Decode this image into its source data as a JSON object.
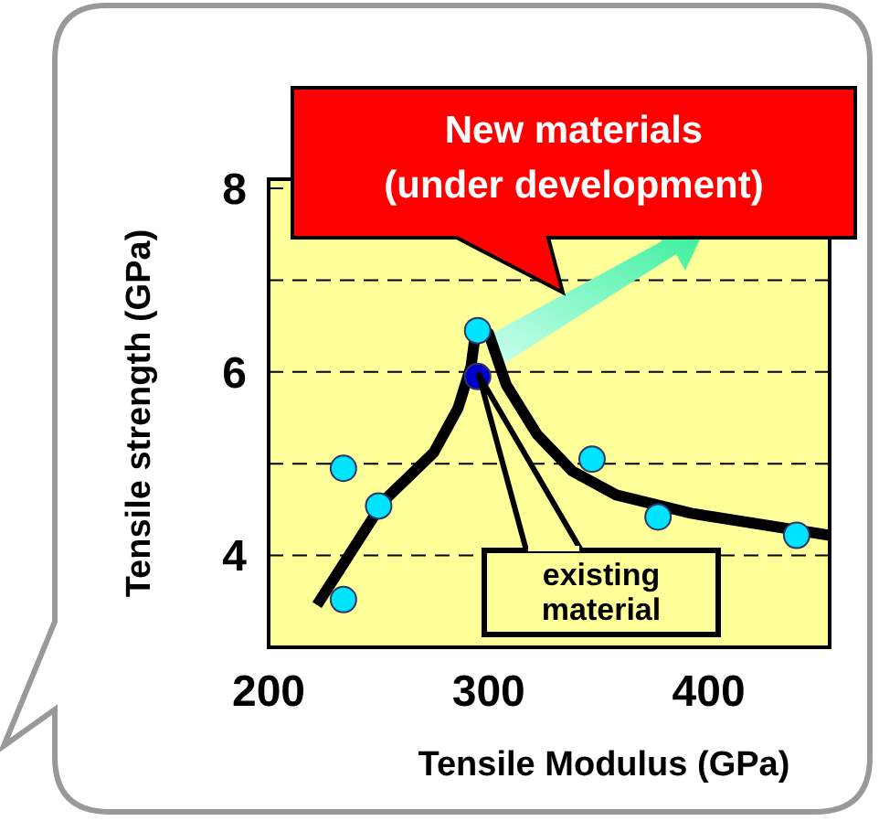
{
  "chart_data": {
    "type": "scatter",
    "xlabel": "Tensile Modulus (GPa)",
    "ylabel": "Tensile strength (GPa)",
    "xlim": [
      200,
      455
    ],
    "xticks": [
      200,
      300,
      400
    ],
    "ylim": [
      3,
      8.1
    ],
    "yticks": [
      4,
      {
        "value": 5,
        "label": null
      },
      6,
      {
        "value": 7,
        "label": null
      },
      8
    ],
    "grid": "y",
    "series": [
      {
        "type": "line",
        "color": "#000000",
        "x": [
          222,
          252.5,
          275,
          286,
          292,
          294,
          300,
          308,
          322,
          338,
          358,
          392,
          455
        ],
        "values": [
          3.46,
          4.6,
          5.12,
          5.6,
          6.06,
          6.42,
          6.42,
          5.86,
          5.32,
          4.92,
          4.66,
          4.46,
          4.22
        ]
      },
      {
        "marker": "circle",
        "color": "#00e5ff",
        "x": [
          234,
          234,
          250,
          295,
          347,
          377,
          440
        ],
        "values": [
          4.95,
          3.52,
          4.54,
          6.45,
          5.05,
          4.42,
          4.22
        ]
      },
      {
        "marker": "circle",
        "color": "#0000cc",
        "x": [
          295
        ],
        "values": [
          5.95
        ]
      }
    ],
    "annotations": [
      "New materials\n(under development)",
      "existing\nmaterial"
    ]
  }
}
